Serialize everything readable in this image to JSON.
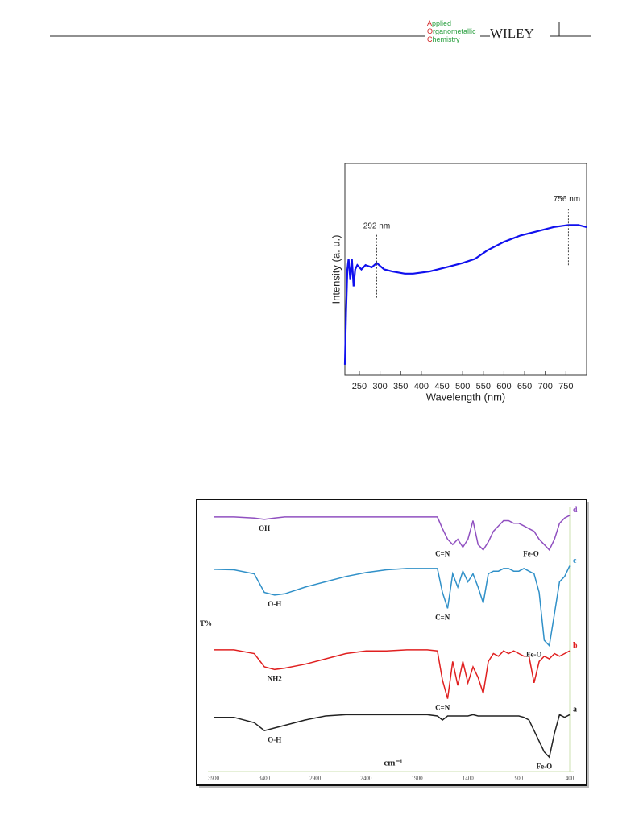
{
  "header": {
    "journal": [
      "Applied",
      "Organometallic",
      "Chemistry"
    ],
    "publisher": "WILEY"
  },
  "chart_data": [
    {
      "type": "line",
      "xlabel": "Wavelength (nm)",
      "ylabel": "Intensity (a. u.)",
      "color": "#1010ee",
      "x": [
        215,
        218,
        221,
        224,
        228,
        232,
        236,
        240,
        245,
        255,
        265,
        280,
        292,
        310,
        330,
        360,
        380,
        420,
        460,
        500,
        530,
        560,
        600,
        640,
        680,
        720,
        756,
        780,
        800
      ],
      "values": [
        0.05,
        0.3,
        0.5,
        0.55,
        0.45,
        0.55,
        0.42,
        0.5,
        0.52,
        0.5,
        0.52,
        0.51,
        0.53,
        0.5,
        0.49,
        0.48,
        0.48,
        0.49,
        0.51,
        0.53,
        0.55,
        0.59,
        0.63,
        0.66,
        0.68,
        0.7,
        0.71,
        0.71,
        0.7
      ],
      "xlim": [
        215,
        800
      ],
      "ylim": [
        0,
        1
      ],
      "xticks": [
        250,
        300,
        350,
        400,
        450,
        500,
        550,
        600,
        650,
        700,
        750
      ],
      "annotations": [
        {
          "label": "292 nm",
          "x": 292
        },
        {
          "label": "756 nm",
          "x": 756
        }
      ]
    },
    {
      "type": "line",
      "xlabel": "cm⁻¹",
      "ylabel": "T%",
      "x": [
        3900,
        3700,
        3500,
        3400,
        3300,
        3200,
        3000,
        2800,
        2600,
        2400,
        2200,
        2000,
        1800,
        1700,
        1650,
        1600,
        1550,
        1500,
        1450,
        1400,
        1350,
        1300,
        1250,
        1200,
        1150,
        1100,
        1050,
        1000,
        950,
        900,
        850,
        800,
        750,
        700,
        650,
        600,
        550,
        500,
        450,
        400
      ],
      "xlim": [
        3900,
        400
      ],
      "ylim": [
        0,
        100
      ],
      "xticks": [
        3900,
        3400,
        2900,
        2400,
        1900,
        1400,
        900,
        400
      ],
      "series": [
        {
          "name": "a",
          "color": "#222222",
          "values": [
            21,
            21,
            19,
            16,
            17,
            18,
            20,
            21.5,
            22,
            22,
            22,
            22,
            22,
            21.5,
            20,
            21.5,
            21.5,
            21.5,
            21.5,
            21.5,
            22,
            21.5,
            21.5,
            21.5,
            21.5,
            21.5,
            21.5,
            21.5,
            21.5,
            21.5,
            21,
            20,
            16,
            12,
            8,
            6,
            15,
            22,
            21,
            22
          ]
        },
        {
          "name": "b",
          "color": "#e02020",
          "values": [
            46.4,
            46.4,
            45,
            40,
            39,
            39.5,
            41,
            43,
            45,
            46,
            46,
            46.4,
            46.4,
            46,
            35,
            28,
            42,
            33,
            42,
            34,
            40,
            36,
            30,
            42,
            45,
            44,
            46,
            45,
            46,
            45,
            44,
            44,
            34,
            42,
            44,
            43,
            45,
            44,
            45,
            46
          ]
        },
        {
          "name": "c",
          "color": "#3090c8",
          "values": [
            76.7,
            76.5,
            75,
            68,
            67,
            67.5,
            70,
            72,
            74,
            75.5,
            76.5,
            77,
            77,
            77,
            68,
            62,
            75,
            70,
            76,
            72,
            75,
            70,
            64,
            75,
            76,
            76,
            77,
            77,
            76,
            76,
            77,
            76,
            75,
            68,
            50,
            48,
            60,
            72,
            74,
            78
          ]
        },
        {
          "name": "d",
          "color": "#9050c0",
          "values": [
            96.4,
            96.4,
            96,
            95.5,
            96,
            96.4,
            96.4,
            96.4,
            96.4,
            96.4,
            96.4,
            96.4,
            96.4,
            96.4,
            92,
            88,
            86,
            88,
            85,
            88,
            95,
            86,
            84,
            87,
            91,
            93,
            95,
            95,
            94,
            94,
            93,
            92,
            91,
            88,
            86,
            84,
            88,
            94,
            96,
            97
          ]
        }
      ],
      "annotations": [
        {
          "label": "OH",
          "x": 3400,
          "series": 3
        },
        {
          "label": "C=N",
          "x": 1650,
          "series": 3
        },
        {
          "label": "Fe-O",
          "x": 780,
          "series": 3
        },
        {
          "label": "O-H",
          "x": 3300,
          "series": 2
        },
        {
          "label": "C=N",
          "x": 1650,
          "series": 2
        },
        {
          "label": "Fe-O",
          "x": 750,
          "series": 2
        },
        {
          "label": "NH2",
          "x": 3300,
          "series": 1
        },
        {
          "label": "C=N",
          "x": 1650,
          "series": 1
        },
        {
          "label": "O-H",
          "x": 3300,
          "series": 0
        },
        {
          "label": "Fe-O",
          "x": 650,
          "series": 0
        }
      ]
    }
  ]
}
